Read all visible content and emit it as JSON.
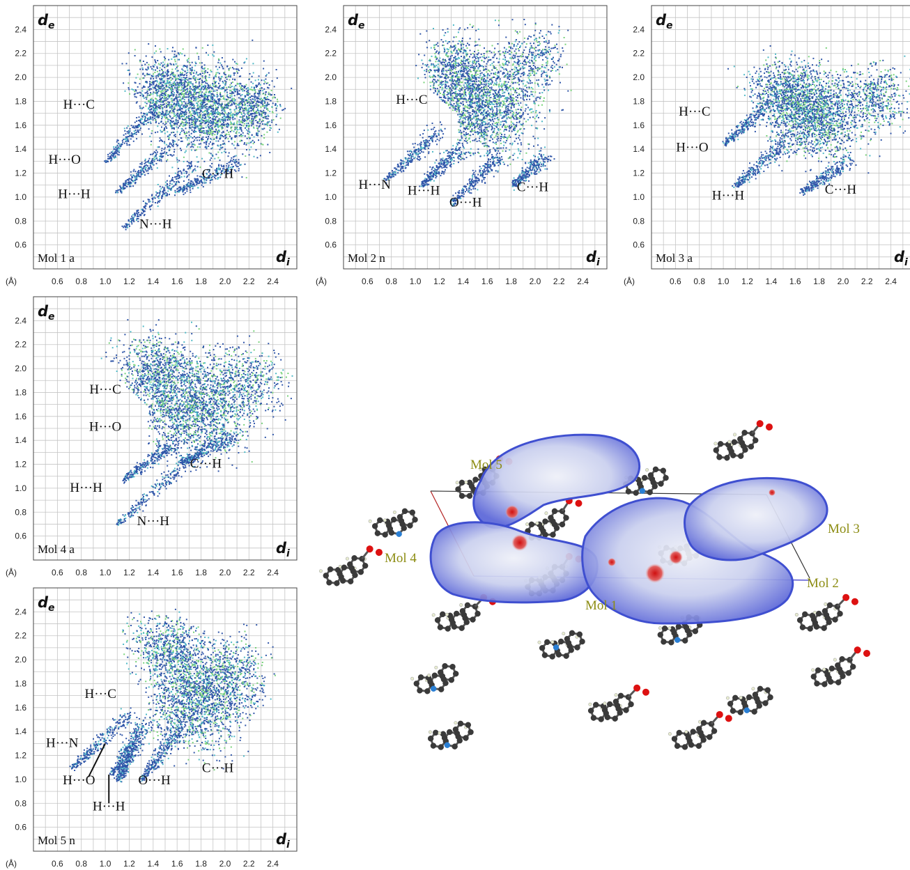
{
  "chart_data": [
    {
      "type": "scatter",
      "title": "Mol 1 a",
      "xlabel": "d_i",
      "ylabel": "d_e",
      "unit": "(Å)",
      "xlim": [
        0.4,
        2.6
      ],
      "ylim": [
        0.4,
        2.6
      ],
      "x_ticks": [
        "0.6",
        "0.8",
        "1.0",
        "1.2",
        "1.4",
        "1.6",
        "1.8",
        "2.0",
        "2.2",
        "2.4"
      ],
      "y_ticks": [
        "0.6",
        "0.8",
        "1.0",
        "1.2",
        "1.4",
        "1.6",
        "1.8",
        "2.0",
        "2.2",
        "2.4"
      ],
      "grid": true,
      "contacts": [
        {
          "label": "H···C",
          "x": 0.78,
          "y": 1.74
        },
        {
          "label": "H···O",
          "x": 0.66,
          "y": 1.28
        },
        {
          "label": "H···H",
          "x": 0.74,
          "y": 0.99
        },
        {
          "label": "C···H",
          "x": 1.94,
          "y": 1.16
        },
        {
          "label": "N···H",
          "x": 1.42,
          "y": 0.74
        }
      ]
    },
    {
      "type": "scatter",
      "title": "Mol 2 n",
      "xlabel": "d_i",
      "ylabel": "d_e",
      "unit": "(Å)",
      "xlim": [
        0.4,
        2.6
      ],
      "ylim": [
        0.4,
        2.6
      ],
      "x_ticks": [
        "0.6",
        "0.8",
        "1.0",
        "1.2",
        "1.4",
        "1.6",
        "1.8",
        "2.0",
        "2.2",
        "2.4"
      ],
      "y_ticks": [
        "0.6",
        "0.8",
        "1.0",
        "1.2",
        "1.4",
        "1.6",
        "1.8",
        "2.0",
        "2.2",
        "2.4"
      ],
      "grid": true,
      "contacts": [
        {
          "label": "H···C",
          "x": 0.97,
          "y": 1.78
        },
        {
          "label": "H···N",
          "x": 0.66,
          "y": 1.07
        },
        {
          "label": "H···H",
          "x": 1.07,
          "y": 1.02
        },
        {
          "label": "O···H",
          "x": 1.42,
          "y": 0.92
        },
        {
          "label": "C···H",
          "x": 1.98,
          "y": 1.05
        }
      ]
    },
    {
      "type": "scatter",
      "title": "Mol 3 a",
      "xlabel": "d_i",
      "ylabel": "d_e",
      "unit": "(Å)",
      "xlim": [
        0.4,
        2.6
      ],
      "ylim": [
        0.4,
        2.6
      ],
      "x_ticks": [
        "0.6",
        "0.8",
        "1.0",
        "1.2",
        "1.4",
        "1.6",
        "1.8",
        "2.0",
        "2.2",
        "2.4"
      ],
      "y_ticks": [
        "0.6",
        "0.8",
        "1.0",
        "1.2",
        "1.4",
        "1.6",
        "1.8",
        "2.0",
        "2.2",
        "2.4"
      ],
      "grid": true,
      "contacts": [
        {
          "label": "H···C",
          "x": 0.76,
          "y": 1.68
        },
        {
          "label": "H···O",
          "x": 0.74,
          "y": 1.38
        },
        {
          "label": "H···H",
          "x": 1.04,
          "y": 0.98
        },
        {
          "label": "C···H",
          "x": 1.98,
          "y": 1.03
        }
      ]
    },
    {
      "type": "scatter",
      "title": "Mol 4 a",
      "xlabel": "d_i",
      "ylabel": "d_e",
      "unit": "(Å)",
      "xlim": [
        0.4,
        2.6
      ],
      "ylim": [
        0.4,
        2.6
      ],
      "x_ticks": [
        "0.6",
        "0.8",
        "1.0",
        "1.2",
        "1.4",
        "1.6",
        "1.8",
        "2.0",
        "2.2",
        "2.4"
      ],
      "y_ticks": [
        "0.6",
        "0.8",
        "1.0",
        "1.2",
        "1.4",
        "1.6",
        "1.8",
        "2.0",
        "2.2",
        "2.4"
      ],
      "grid": true,
      "contacts": [
        {
          "label": "H···C",
          "x": 1.0,
          "y": 1.79
        },
        {
          "label": "H···O",
          "x": 1.0,
          "y": 1.48
        },
        {
          "label": "H···H",
          "x": 0.84,
          "y": 0.97
        },
        {
          "label": "C···H",
          "x": 1.84,
          "y": 1.17
        },
        {
          "label": "N···H",
          "x": 1.4,
          "y": 0.69
        }
      ]
    },
    {
      "type": "scatter",
      "title": "Mol 5 n",
      "xlabel": "d_i",
      "ylabel": "d_e",
      "unit": "(Å)",
      "xlim": [
        0.4,
        2.6
      ],
      "ylim": [
        0.4,
        2.6
      ],
      "x_ticks": [
        "0.6",
        "0.8",
        "1.0",
        "1.2",
        "1.4",
        "1.6",
        "1.8",
        "2.0",
        "2.2",
        "2.4"
      ],
      "y_ticks": [
        "0.6",
        "0.8",
        "1.0",
        "1.2",
        "1.4",
        "1.6",
        "1.8",
        "2.0",
        "2.2",
        "2.4"
      ],
      "grid": true,
      "contacts": [
        {
          "label": "H···C",
          "x": 0.96,
          "y": 1.68
        },
        {
          "label": "H···N",
          "x": 0.64,
          "y": 1.27
        },
        {
          "label": "H···O",
          "x": 0.78,
          "y": 0.96
        },
        {
          "label": "H···H",
          "x": 1.03,
          "y": 0.74
        },
        {
          "label": "O···H",
          "x": 1.41,
          "y": 0.96
        },
        {
          "label": "C···H",
          "x": 1.94,
          "y": 1.06
        }
      ]
    }
  ],
  "crystal_view": {
    "labels": [
      "Mol 5",
      "Mol 4",
      "Mol 1",
      "Mol 3",
      "Mol 2"
    ]
  },
  "colors": {
    "points": "#2f55a8",
    "points_dense": "#4fb9c6",
    "points_hot": "#78d27a",
    "surface": "#6f80dd",
    "label_olive": "#8c8c12"
  }
}
